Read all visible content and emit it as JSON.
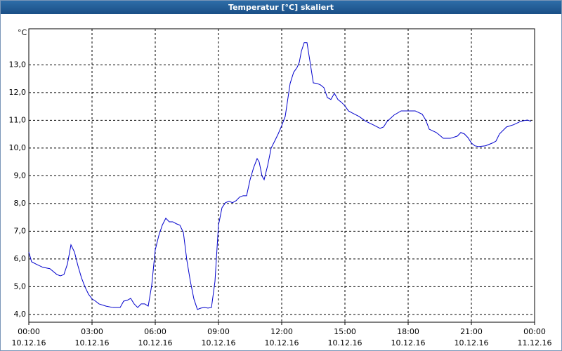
{
  "chart_data": {
    "type": "line",
    "title": "Temperatur [°C] skaliert",
    "unit": "°C",
    "x": [
      0,
      8,
      20,
      40,
      60,
      80,
      90,
      100,
      110,
      120,
      130,
      140,
      150,
      160,
      170,
      180,
      190,
      200,
      220,
      240,
      260,
      270,
      280,
      290,
      300,
      310,
      320,
      330,
      340,
      350,
      360,
      370,
      380,
      390,
      400,
      410,
      420,
      430,
      440,
      450,
      460,
      470,
      480,
      490,
      500,
      510,
      520,
      530,
      540,
      550,
      560,
      570,
      580,
      590,
      600,
      610,
      620,
      630,
      640,
      650,
      656,
      664,
      670,
      680,
      690,
      700,
      710,
      720,
      730,
      736,
      744,
      754,
      764,
      770,
      776,
      784,
      792,
      800,
      810,
      820,
      830,
      840,
      850,
      860,
      870,
      880,
      890,
      900,
      910,
      920,
      940,
      960,
      980,
      1000,
      1010,
      1020,
      1040,
      1060,
      1080,
      1100,
      1120,
      1130,
      1140,
      1160,
      1170,
      1180,
      1200,
      1220,
      1230,
      1240,
      1250,
      1260,
      1270,
      1280,
      1300,
      1320,
      1330,
      1340,
      1360,
      1380,
      1400,
      1410,
      1420,
      1430
    ],
    "series": [
      {
        "name": "Temperatur",
        "color": "#0000cc",
        "values": [
          6.25,
          5.9,
          5.82,
          5.7,
          5.65,
          5.44,
          5.39,
          5.44,
          5.82,
          6.51,
          6.25,
          5.75,
          5.32,
          4.99,
          4.73,
          4.56,
          4.48,
          4.38,
          4.3,
          4.25,
          4.25,
          4.48,
          4.51,
          4.58,
          4.38,
          4.25,
          4.38,
          4.38,
          4.3,
          5.06,
          6.33,
          6.84,
          7.22,
          7.47,
          7.34,
          7.34,
          7.27,
          7.22,
          6.96,
          5.95,
          5.19,
          4.56,
          4.18,
          4.23,
          4.25,
          4.23,
          4.25,
          5.19,
          7.22,
          7.85,
          8.03,
          8.08,
          8.03,
          8.1,
          8.23,
          8.28,
          8.28,
          8.86,
          9.29,
          9.62,
          9.49,
          8.99,
          8.86,
          9.37,
          10.0,
          10.25,
          10.51,
          10.81,
          11.14,
          11.65,
          12.33,
          12.73,
          12.91,
          13.09,
          13.49,
          13.8,
          13.8,
          13.16,
          12.35,
          12.33,
          12.28,
          12.18,
          11.82,
          11.75,
          11.97,
          11.75,
          11.65,
          11.52,
          11.34,
          11.27,
          11.14,
          10.96,
          10.84,
          10.71,
          10.76,
          10.96,
          11.19,
          11.34,
          11.34,
          11.34,
          11.22,
          11.01,
          10.68,
          10.56,
          10.46,
          10.35,
          10.35,
          10.43,
          10.56,
          10.51,
          10.38,
          10.18,
          10.08,
          10.05,
          10.08,
          10.18,
          10.25,
          10.51,
          10.76,
          10.84,
          10.96,
          10.99,
          11.01,
          10.96
        ]
      }
    ],
    "xlim": [
      0,
      1440
    ],
    "xticks": [
      {
        "value": 0,
        "label": "00:00\n10.12.16"
      },
      {
        "value": 180,
        "label": "03:00\n10.12.16"
      },
      {
        "value": 360,
        "label": "06:00\n10.12.16"
      },
      {
        "value": 540,
        "label": "09:00\n10.12.16"
      },
      {
        "value": 720,
        "label": "12:00\n10.12.16"
      },
      {
        "value": 900,
        "label": "15:00\n10.12.16"
      },
      {
        "value": 1080,
        "label": "18:00\n10.12.16"
      },
      {
        "value": 1260,
        "label": "21:00\n10.12.16"
      },
      {
        "value": 1440,
        "label": "00:00\n11.12.16"
      }
    ],
    "ylim": [
      3.72,
      14.3
    ],
    "yticks": [
      {
        "value": 4,
        "label": "4,0"
      },
      {
        "value": 5,
        "label": "5,0"
      },
      {
        "value": 6,
        "label": "6,0"
      },
      {
        "value": 7,
        "label": "7,0"
      },
      {
        "value": 8,
        "label": "8,0"
      },
      {
        "value": 9,
        "label": "9,0"
      },
      {
        "value": 10,
        "label": "10,0"
      },
      {
        "value": 11,
        "label": "11,0"
      },
      {
        "value": 12,
        "label": "12,0"
      },
      {
        "value": 13,
        "label": "13,0"
      }
    ],
    "grid": true
  }
}
